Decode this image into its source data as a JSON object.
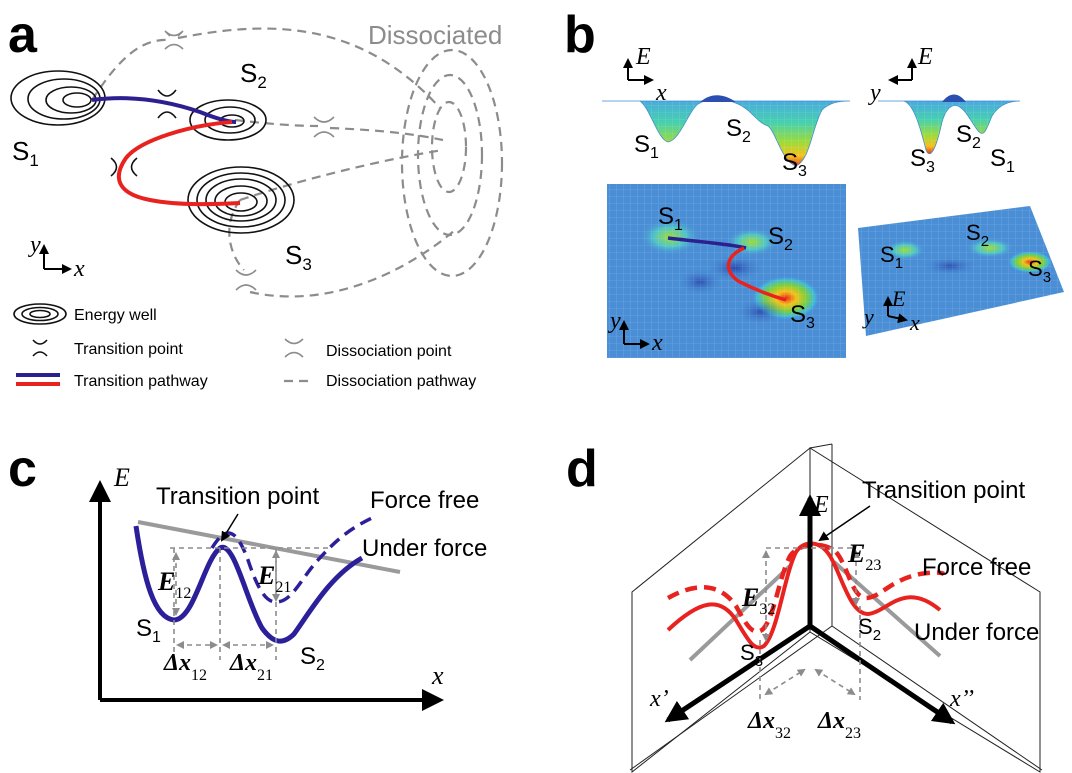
{
  "panel_labels": {
    "a": "a",
    "b": "b",
    "c": "c",
    "d": "d"
  },
  "colors": {
    "transition_blue": "#2c1f8f",
    "transition_red": "#e8231f",
    "dissociation_gray": "#8c8c8c",
    "force_free_red": "#e8231f",
    "panel_c_blue": "#2c1f9a"
  },
  "panel_a": {
    "dissociated": "Dissociated",
    "s1": "S",
    "s1_sub": "1",
    "s2": "S",
    "s2_sub": "2",
    "s3": "S",
    "s3_sub": "3",
    "axis_y": "y",
    "axis_x": "x",
    "legend": {
      "energy_well": "Energy well",
      "transition_point": "Transition point",
      "transition_pathway": "Transition pathway",
      "dissociation_point": "Dissociation point",
      "dissociation_pathway": "Dissociation pathway"
    }
  },
  "panel_b": {
    "axis_e": "E",
    "axis_x": "x",
    "axis_y": "y",
    "left": {
      "s1": "S",
      "s1_sub": "1",
      "s2": "S",
      "s2_sub": "2",
      "s3": "S",
      "s3_sub": "3"
    },
    "right": {
      "s3": "S",
      "s3_sub": "3",
      "s2": "S",
      "s2_sub": "2",
      "s1": "S",
      "s1_sub": "1"
    },
    "map": {
      "s1": "S",
      "s1_sub": "1",
      "s2": "S",
      "s2_sub": "2",
      "s3": "S",
      "s3_sub": "3"
    },
    "surf": {
      "s1": "S",
      "s1_sub": "1",
      "s2": "S",
      "s2_sub": "2",
      "s3": "S",
      "s3_sub": "3"
    }
  },
  "panel_c": {
    "axis_e": "E",
    "axis_x": "x",
    "transition_point": "Transition point",
    "force_free": "Force free",
    "under_force": "Under force",
    "e12": "E",
    "e12_sub": "12",
    "e21": "E",
    "e21_sub": "21",
    "s1": "S",
    "s1_sub": "1",
    "s2": "S",
    "s2_sub": "2",
    "dx12": "Δx",
    "dx12_sub": "12",
    "dx21": "Δx",
    "dx21_sub": "21"
  },
  "panel_d": {
    "axis_e": "E",
    "axis_x1": "x’",
    "axis_x2": "x’’",
    "transition_point": "Transition point",
    "force_free": "Force free",
    "under_force": "Under force",
    "e32": "E",
    "e32_sub": "32",
    "e23": "E",
    "e23_sub": "23",
    "s3": "S",
    "s3_sub": "3",
    "s2": "S",
    "s2_sub": "2",
    "dx32": "Δx",
    "dx32_sub": "32",
    "dx23": "Δx",
    "dx23_sub": "23"
  }
}
